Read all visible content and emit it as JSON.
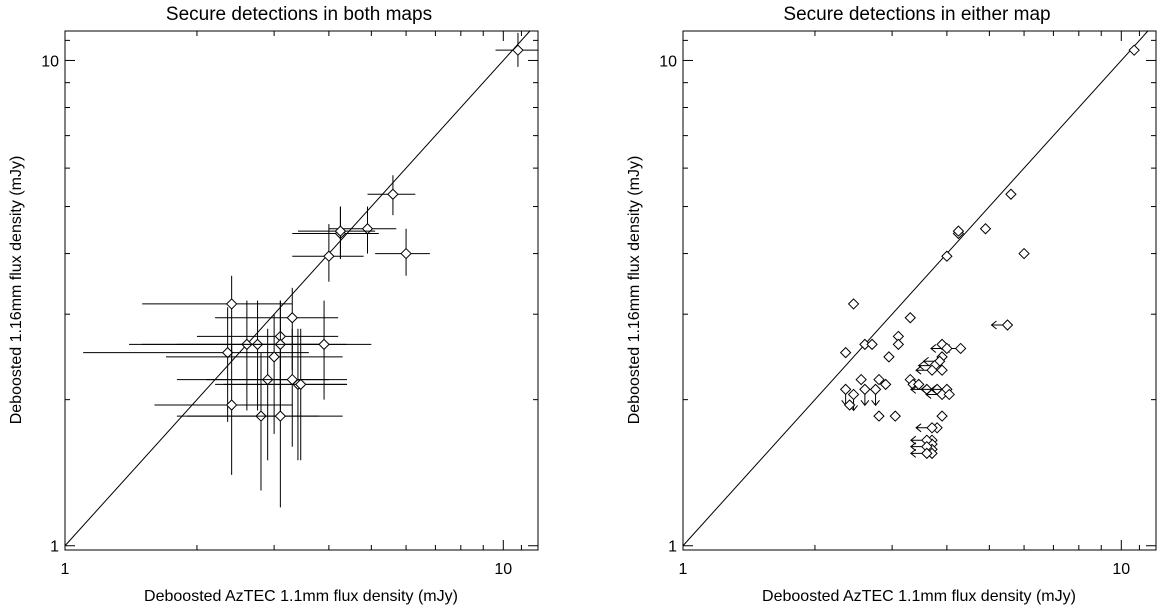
{
  "figure": {
    "panels": [
      {
        "title": "Secure detections in both maps"
      },
      {
        "title": "Secure detections in either map"
      }
    ]
  },
  "chart_data": [
    {
      "type": "scatter",
      "title": "Secure detections in both maps",
      "xlabel": "Deboosted AzTEC 1.1mm flux density (mJy)",
      "ylabel": "Deboosted 1.16mm flux density (mJy)",
      "xscale": "log",
      "yscale": "log",
      "xlim": [
        1,
        12
      ],
      "ylim": [
        0.98,
        11.5
      ],
      "xticks": [
        {
          "value": 1,
          "label": "1"
        },
        {
          "value": 10,
          "label": "10"
        }
      ],
      "yticks": [
        {
          "value": 1,
          "label": "1"
        },
        {
          "value": 10,
          "label": "10"
        }
      ],
      "reference_line": "y = x",
      "marker": "diamond",
      "points": [
        {
          "x": 10.8,
          "y": 10.5,
          "xerr": [
            9.6,
            12.0
          ],
          "yerr": [
            9.7,
            11.4
          ]
        },
        {
          "x": 5.6,
          "y": 5.3,
          "xerr": [
            4.9,
            6.3
          ],
          "yerr": [
            4.8,
            5.8
          ]
        },
        {
          "x": 4.9,
          "y": 4.5,
          "xerr": [
            4.0,
            5.7
          ],
          "yerr": [
            4.0,
            5.0
          ]
        },
        {
          "x": 4.25,
          "y": 4.4,
          "xerr": [
            3.3,
            5.2
          ],
          "yerr": [
            3.9,
            5.0
          ]
        },
        {
          "x": 4.25,
          "y": 4.45,
          "xerr": [
            3.4,
            5.1
          ],
          "yerr": [
            3.9,
            5.0
          ]
        },
        {
          "x": 4.0,
          "y": 3.95,
          "xerr": [
            3.3,
            4.8
          ],
          "yerr": [
            3.5,
            4.6
          ]
        },
        {
          "x": 6.0,
          "y": 4.0,
          "xerr": [
            5.1,
            6.8
          ],
          "yerr": [
            3.6,
            4.5
          ]
        },
        {
          "x": 2.4,
          "y": 3.15,
          "xerr": [
            1.5,
            3.3
          ],
          "yerr": [
            2.4,
            3.6
          ]
        },
        {
          "x": 3.3,
          "y": 2.95,
          "xerr": [
            2.2,
            4.2
          ],
          "yerr": [
            2.3,
            3.4
          ]
        },
        {
          "x": 3.1,
          "y": 2.7,
          "xerr": [
            2.0,
            4.2
          ],
          "yerr": [
            2.1,
            3.2
          ]
        },
        {
          "x": 2.35,
          "y": 2.5,
          "xerr": [
            1.1,
            3.6
          ],
          "yerr": [
            1.8,
            3.1
          ]
        },
        {
          "x": 2.6,
          "y": 2.6,
          "xerr": [
            1.4,
            3.9
          ],
          "yerr": [
            1.9,
            3.2
          ]
        },
        {
          "x": 2.75,
          "y": 2.6,
          "xerr": [
            1.5,
            4.0
          ],
          "yerr": [
            1.9,
            3.2
          ]
        },
        {
          "x": 3.0,
          "y": 2.45,
          "xerr": [
            1.7,
            4.3
          ],
          "yerr": [
            1.7,
            3.0
          ]
        },
        {
          "x": 3.1,
          "y": 2.6,
          "xerr": [
            1.8,
            4.4
          ],
          "yerr": [
            1.9,
            3.2
          ]
        },
        {
          "x": 3.9,
          "y": 2.6,
          "xerr": [
            2.7,
            5.0
          ],
          "yerr": [
            2.0,
            3.2
          ]
        },
        {
          "x": 2.9,
          "y": 2.2,
          "xerr": [
            1.8,
            4.0
          ],
          "yerr": [
            1.5,
            2.8
          ]
        },
        {
          "x": 3.3,
          "y": 2.2,
          "xerr": [
            2.1,
            4.4
          ],
          "yerr": [
            1.6,
            2.8
          ]
        },
        {
          "x": 3.4,
          "y": 2.15,
          "xerr": [
            2.2,
            4.4
          ],
          "yerr": [
            1.5,
            2.8
          ]
        },
        {
          "x": 3.45,
          "y": 2.15,
          "xerr": [
            2.3,
            4.4
          ],
          "yerr": [
            1.5,
            2.8
          ]
        },
        {
          "x": 2.4,
          "y": 1.95,
          "xerr": [
            1.6,
            3.3
          ],
          "yerr": [
            1.4,
            2.6
          ]
        },
        {
          "x": 2.8,
          "y": 1.85,
          "xerr": [
            1.8,
            3.8
          ],
          "yerr": [
            1.3,
            2.5
          ]
        },
        {
          "x": 3.1,
          "y": 1.85,
          "xerr": [
            1.9,
            4.3
          ],
          "yerr": [
            1.2,
            2.5
          ]
        }
      ]
    },
    {
      "type": "scatter",
      "title": "Secure detections in either map",
      "xlabel": "Deboosted AzTEC 1.1mm flux density (mJy)",
      "ylabel": "Deboosted 1.16mm flux density (mJy)",
      "xscale": "log",
      "yscale": "log",
      "xlim": [
        1,
        12
      ],
      "ylim": [
        0.98,
        11.5
      ],
      "xticks": [
        {
          "value": 1,
          "label": "1"
        },
        {
          "value": 10,
          "label": "10"
        }
      ],
      "yticks": [
        {
          "value": 1,
          "label": "1"
        },
        {
          "value": 10,
          "label": "10"
        }
      ],
      "reference_line": "y = x",
      "marker": "diamond",
      "points": [
        {
          "x": 10.7,
          "y": 10.5
        },
        {
          "x": 5.6,
          "y": 5.3
        },
        {
          "x": 4.9,
          "y": 4.5
        },
        {
          "x": 4.25,
          "y": 4.4
        },
        {
          "x": 4.25,
          "y": 4.45
        },
        {
          "x": 4.0,
          "y": 3.95
        },
        {
          "x": 6.0,
          "y": 4.0
        },
        {
          "x": 2.45,
          "y": 3.15
        },
        {
          "x": 3.3,
          "y": 2.95
        },
        {
          "x": 5.5,
          "y": 2.85,
          "upper_limit": "x"
        },
        {
          "x": 3.1,
          "y": 2.7
        },
        {
          "x": 2.35,
          "y": 2.5
        },
        {
          "x": 2.6,
          "y": 2.6
        },
        {
          "x": 2.7,
          "y": 2.6
        },
        {
          "x": 3.1,
          "y": 2.6
        },
        {
          "x": 4.3,
          "y": 2.55,
          "upper_limit": "x"
        },
        {
          "x": 3.9,
          "y": 2.6
        },
        {
          "x": 4.0,
          "y": 2.55,
          "upper_limit": "x"
        },
        {
          "x": 2.95,
          "y": 2.45
        },
        {
          "x": 3.9,
          "y": 2.45
        },
        {
          "x": 3.85,
          "y": 2.4,
          "upper_limit": "x"
        },
        {
          "x": 3.75,
          "y": 2.35,
          "upper_limit": "x"
        },
        {
          "x": 3.9,
          "y": 2.3
        },
        {
          "x": 3.7,
          "y": 2.3,
          "upper_limit": "x"
        },
        {
          "x": 3.3,
          "y": 2.2
        },
        {
          "x": 2.8,
          "y": 2.2
        },
        {
          "x": 2.9,
          "y": 2.15
        },
        {
          "x": 2.55,
          "y": 2.2
        },
        {
          "x": 3.35,
          "y": 2.15
        },
        {
          "x": 3.45,
          "y": 2.15
        },
        {
          "x": 3.6,
          "y": 2.1,
          "upper_limit": "x"
        },
        {
          "x": 3.8,
          "y": 2.1,
          "upper_limit": "x"
        },
        {
          "x": 4.0,
          "y": 2.1,
          "upper_limit": "x"
        },
        {
          "x": 3.9,
          "y": 2.05,
          "upper_limit": "x"
        },
        {
          "x": 4.05,
          "y": 2.05
        },
        {
          "x": 2.35,
          "y": 2.1,
          "upper_limit": "y"
        },
        {
          "x": 2.45,
          "y": 2.05,
          "upper_limit": "y"
        },
        {
          "x": 2.6,
          "y": 2.1,
          "upper_limit": "y"
        },
        {
          "x": 2.75,
          "y": 2.1,
          "upper_limit": "y"
        },
        {
          "x": 2.4,
          "y": 1.95
        },
        {
          "x": 3.05,
          "y": 1.85
        },
        {
          "x": 2.8,
          "y": 1.85
        },
        {
          "x": 3.9,
          "y": 1.85
        },
        {
          "x": 3.8,
          "y": 1.75
        },
        {
          "x": 3.7,
          "y": 1.75,
          "upper_limit": "x"
        },
        {
          "x": 3.7,
          "y": 1.65
        },
        {
          "x": 3.7,
          "y": 1.62
        },
        {
          "x": 3.7,
          "y": 1.58
        },
        {
          "x": 3.7,
          "y": 1.55
        },
        {
          "x": 3.6,
          "y": 1.65,
          "upper_limit": "x"
        },
        {
          "x": 3.6,
          "y": 1.6,
          "upper_limit": "x"
        },
        {
          "x": 3.6,
          "y": 1.55,
          "upper_limit": "x"
        }
      ]
    }
  ]
}
